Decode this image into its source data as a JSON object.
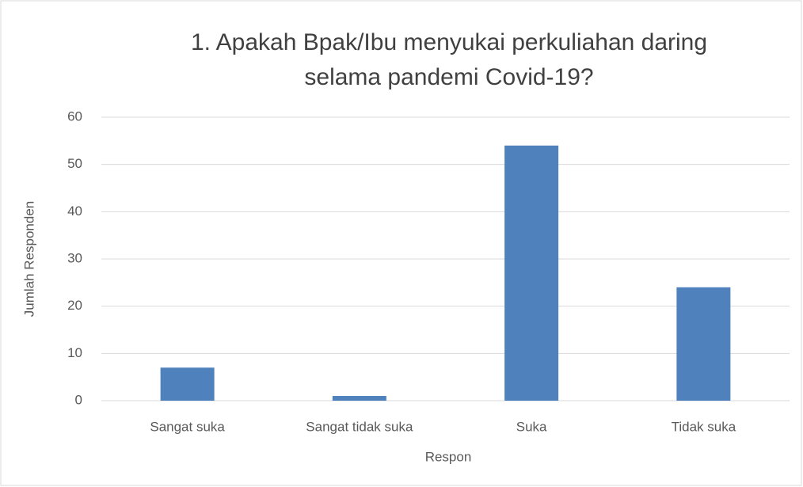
{
  "chart_data": {
    "type": "bar",
    "title": "1. Apakah Bpak/Ibu menyukai perkuliahan daring selama pandemi Covid-19?",
    "x_label": "Respon",
    "y_label": "Jumlah Responden",
    "categories": [
      "Sangat suka",
      "Sangat tidak suka",
      "Suka",
      "Tidak suka"
    ],
    "values": [
      7,
      1,
      54,
      24
    ],
    "color": "#4f81bd",
    "ylim": [
      0,
      60
    ],
    "yticks": [
      0,
      10,
      20,
      30,
      40,
      50,
      60
    ],
    "grid": true
  }
}
